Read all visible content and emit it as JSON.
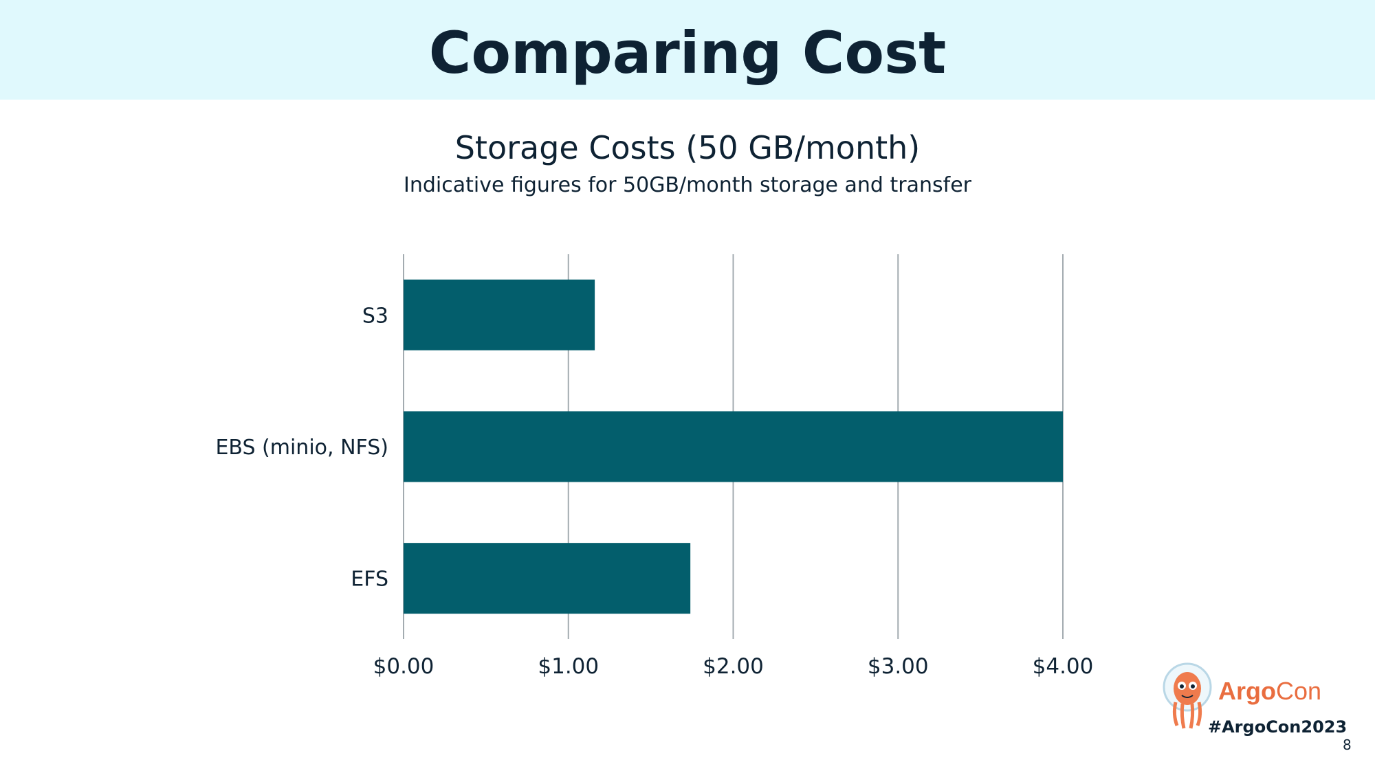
{
  "slide": {
    "title": "Comparing Cost",
    "hashtag": "#ArgoCon2023",
    "page_number": "8",
    "logo": {
      "brand_word": "Argo",
      "brand_suffix": "Con",
      "icon": "octopus-astronaut-icon"
    }
  },
  "colors": {
    "header_band": "#e0f9fd",
    "bar": "#035e6c",
    "grid": "#a3abb0",
    "text": "#0e2233",
    "brand": "#e96d3f"
  },
  "chart_data": {
    "type": "bar",
    "orientation": "horizontal",
    "title": "Storage Costs (50 GB/month)",
    "subtitle": "Indicative figures for 50GB/month storage and transfer",
    "categories": [
      "S3",
      "EBS (minio, NFS)",
      "EFS"
    ],
    "values": [
      1.16,
      4.0,
      1.74
    ],
    "xlim": [
      0,
      4
    ],
    "xticks": [
      0,
      1,
      2,
      3,
      4
    ],
    "xtick_labels": [
      "$0.00",
      "$1.00",
      "$2.00",
      "$3.00",
      "$4.00"
    ],
    "grid": "vertical",
    "legend": "none"
  }
}
